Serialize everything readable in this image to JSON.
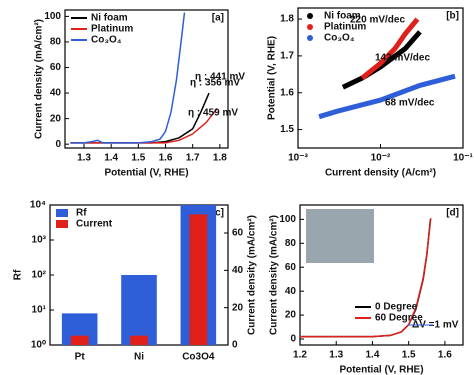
{
  "chart_data": [
    {
      "type": "line",
      "label": "[a]",
      "xlabel": "Potential (V, RHE)",
      "ylabel": "Current density (mA/cm²)",
      "xlim": [
        1.23,
        1.83
      ],
      "xticks": [
        1.3,
        1.4,
        1.5,
        1.6,
        1.7,
        1.8
      ],
      "ylim": [
        -3,
        105
      ],
      "yticks": [
        0,
        20,
        40,
        60,
        80,
        100
      ],
      "legend": "upper left",
      "series": [
        {
          "name": "Ni foam",
          "color": "#000000",
          "x": [
            1.25,
            1.4,
            1.55,
            1.6,
            1.65,
            1.7,
            1.73,
            1.76
          ],
          "values": [
            1,
            1,
            1,
            2,
            5,
            12,
            25,
            40
          ]
        },
        {
          "name": "Platinum",
          "color": "#e0201b",
          "x": [
            1.25,
            1.55,
            1.6,
            1.65,
            1.7,
            1.75,
            1.79
          ],
          "values": [
            1,
            1,
            1,
            3,
            8,
            17,
            28
          ]
        },
        {
          "name": "Co₃O₄",
          "color": "#2f5fd8",
          "x": [
            1.25,
            1.3,
            1.33,
            1.35,
            1.37,
            1.4,
            1.5,
            1.55,
            1.58,
            1.6,
            1.62,
            1.64,
            1.66,
            1.67
          ],
          "values": [
            1,
            1,
            2,
            3,
            1,
            1,
            1,
            2,
            4,
            10,
            25,
            50,
            85,
            103
          ]
        }
      ],
      "annotations": [
        {
          "text": "η : 356 mV",
          "color": "#2f5fd8"
        },
        {
          "text": "η : 441 mV",
          "color": "#000000"
        },
        {
          "text": "η : 459 mV",
          "color": "#e0201b"
        }
      ]
    },
    {
      "type": "line",
      "label": "[b]",
      "xlabel": "Current density (A/cm²)",
      "ylabel": "Potential (V, RHE)",
      "xlog": true,
      "xlim": [
        0.001,
        0.1
      ],
      "xticks": [
        {
          "value": 0.001,
          "label": "10⁻³"
        },
        {
          "value": 0.01,
          "label": "10⁻²"
        },
        {
          "value": 0.1,
          "label": "10⁻¹"
        }
      ],
      "ylim": [
        1.45,
        1.83
      ],
      "yticks": [
        1.5,
        1.6,
        1.7,
        1.8
      ],
      "legend": "upper left",
      "linewidth": 5,
      "series": [
        {
          "name": "Ni foam",
          "color": "#000000",
          "x": [
            0.0035,
            0.006,
            0.01,
            0.02,
            0.03
          ],
          "values": [
            1.615,
            1.64,
            1.67,
            1.72,
            1.765
          ]
        },
        {
          "name": "Platinum",
          "color": "#e0201b",
          "x": [
            0.006,
            0.01,
            0.015,
            0.02,
            0.028
          ],
          "values": [
            1.64,
            1.68,
            1.72,
            1.76,
            1.8
          ]
        },
        {
          "name": "Co₃O₄",
          "color": "#2f5fd8",
          "x": [
            0.0018,
            0.003,
            0.01,
            0.03,
            0.08
          ],
          "values": [
            1.535,
            1.55,
            1.58,
            1.62,
            1.645
          ]
        }
      ],
      "annotations": [
        {
          "text": "220 mV/dec",
          "color": "#e0201b"
        },
        {
          "text": "142 mV/dec",
          "color": "#000000"
        },
        {
          "text": "68 mV/dec",
          "color": "#2f5fd8"
        }
      ]
    },
    {
      "type": "bar",
      "label": "[c]",
      "ylabel": "Rf",
      "y2label": "Current density (mA/cm²)",
      "ylog": true,
      "categories": [
        "Pt",
        "Ni",
        "Co3O4"
      ],
      "ylim": [
        1,
        10000
      ],
      "yticks": [
        {
          "value": 1,
          "label": "10⁰"
        },
        {
          "value": 10,
          "label": "10¹"
        },
        {
          "value": 100,
          "label": "10²"
        },
        {
          "value": 1000,
          "label": "10³"
        },
        {
          "value": 10000,
          "label": "10⁴"
        }
      ],
      "y2lim": [
        0,
        75
      ],
      "y2ticks": [
        0,
        20,
        40,
        60
      ],
      "legend": "upper left",
      "series": [
        {
          "name": "Rf",
          "color": "#2f5fd8",
          "values": [
            8,
            100,
            10000
          ]
        },
        {
          "name": "Current",
          "color": "#e0201b",
          "axis": "y2",
          "values": [
            5,
            5,
            70
          ]
        }
      ]
    },
    {
      "type": "line",
      "label": "[d]",
      "xlabel": "Potential (V, RHE)",
      "ylabel": "Current density (mA/cm²)",
      "xlim": [
        1.2,
        1.65
      ],
      "xticks": [
        1.2,
        1.3,
        1.4,
        1.5,
        1.6
      ],
      "ylim": [
        -5,
        112
      ],
      "yticks": [
        0,
        20,
        40,
        60,
        80,
        100
      ],
      "legend": "lower center",
      "series": [
        {
          "name": "0 Degree",
          "color": "#000000",
          "x": [
            1.2,
            1.3,
            1.4,
            1.45,
            1.48,
            1.5,
            1.52,
            1.54,
            1.55,
            1.56
          ],
          "values": [
            2,
            2,
            2,
            3,
            6,
            12,
            25,
            50,
            70,
            100
          ]
        },
        {
          "name": "60 Degree",
          "color": "#e0201b",
          "x": [
            1.2,
            1.3,
            1.4,
            1.45,
            1.48,
            1.5,
            1.52,
            1.54,
            1.55,
            1.561
          ],
          "values": [
            2,
            2,
            2,
            3,
            6,
            12,
            26,
            51,
            71,
            101
          ]
        }
      ],
      "annotations": [
        {
          "text": "ΔV =1 mV",
          "color": "#2f5fd8"
        }
      ]
    }
  ]
}
